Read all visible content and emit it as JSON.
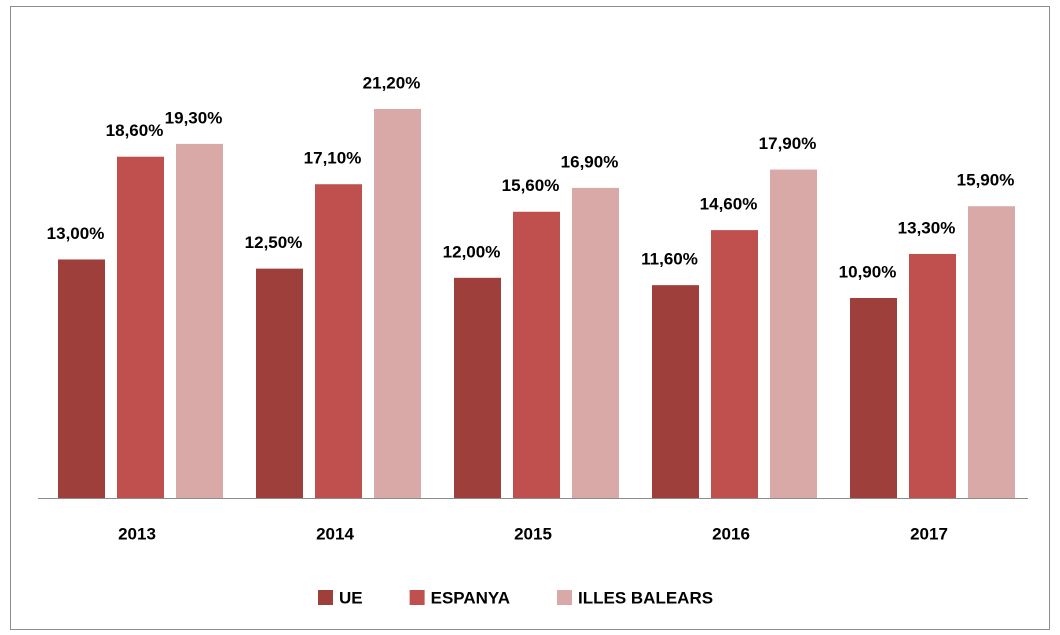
{
  "chart_data": {
    "type": "bar",
    "categories": [
      "2013",
      "2014",
      "2015",
      "2016",
      "2017"
    ],
    "series": [
      {
        "name": "UE",
        "color": "#9e3f3c",
        "values": [
          13.0,
          12.5,
          12.0,
          11.6,
          10.9
        ],
        "value_labels": [
          "13,00%",
          "12,50%",
          "12,00%",
          "11,60%",
          "10,90%"
        ]
      },
      {
        "name": "ESPANYA",
        "color": "#c0504d",
        "values": [
          18.6,
          17.1,
          15.6,
          14.6,
          13.3
        ],
        "value_labels": [
          "18,60%",
          "17,10%",
          "15,60%",
          "14,60%",
          "13,30%"
        ]
      },
      {
        "name": "ILLES BALEARS",
        "color": "#d9a9a8",
        "values": [
          19.3,
          21.2,
          16.9,
          17.9,
          15.9
        ],
        "value_labels": [
          "19,30%",
          "21,20%",
          "16,90%",
          "17,90%",
          "15,90%"
        ]
      }
    ],
    "legend": "bottom"
  }
}
